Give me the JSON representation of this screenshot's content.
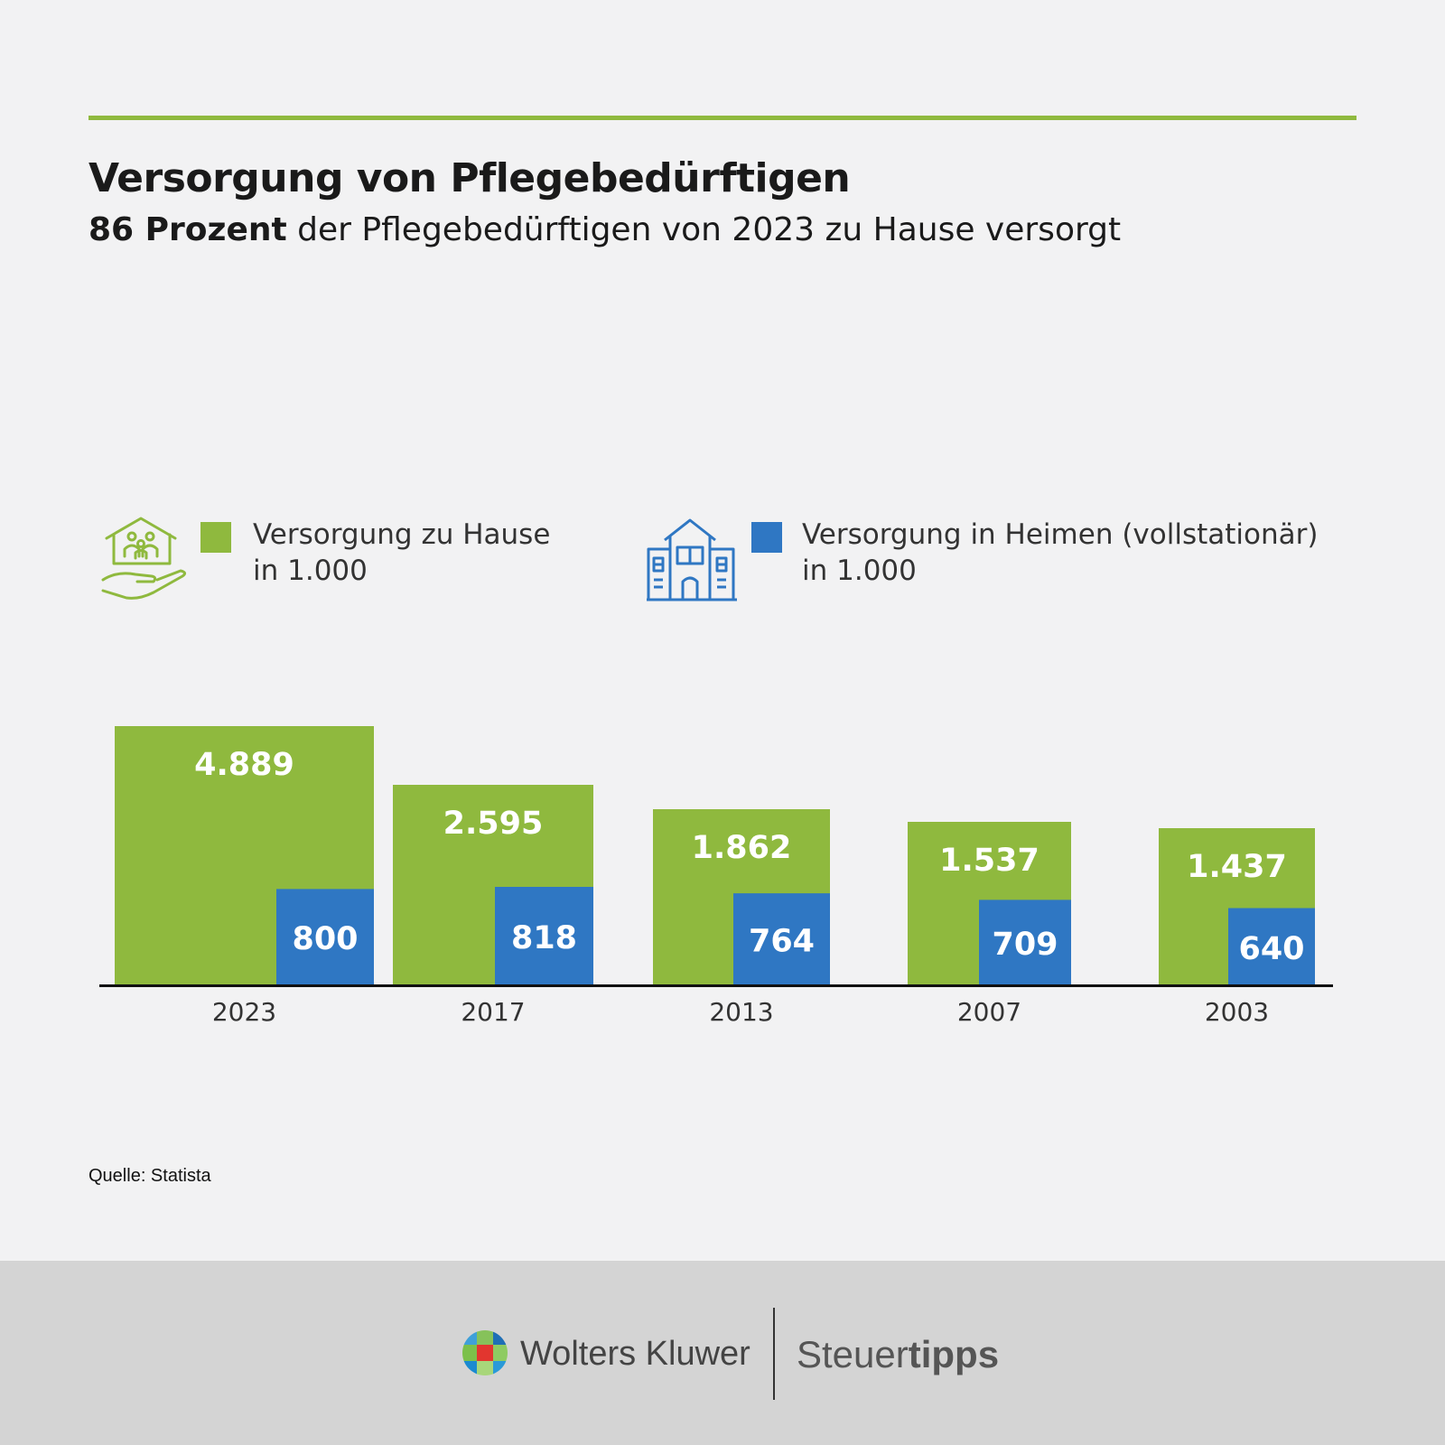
{
  "header": {
    "title": "Versorgung von Pflegebedürftigen",
    "subtitle_bold": "86 Prozent",
    "subtitle_rest": " der Pflegebedürftigen von 2023 zu Hause versorgt"
  },
  "legend": {
    "home": {
      "line1": "Versorgung zu Hause",
      "line2": "in 1.000",
      "icon": "home-care-icon"
    },
    "heim": {
      "line1": "Versorgung in Heimen (vollstationär)",
      "line2": "in 1.000",
      "icon": "care-home-building-icon"
    }
  },
  "colors": {
    "green": "#8fb93e",
    "blue": "#2f77c3",
    "rule": "#8fb93e"
  },
  "chart_data": {
    "type": "bar",
    "categories": [
      "2023",
      "2017",
      "2013",
      "2007",
      "2003"
    ],
    "series": [
      {
        "name": "Versorgung zu Hause",
        "values": [
          4889,
          2595,
          1862,
          1537,
          1437
        ],
        "labels": [
          "4.889",
          "2.595",
          "1.862",
          "1.537",
          "1.437"
        ]
      },
      {
        "name": "Versorgung in Heimen (vollstationär)",
        "values": [
          800,
          818,
          764,
          709,
          640
        ],
        "labels": [
          "800",
          "818",
          "764",
          "709",
          "640"
        ]
      }
    ],
    "unit": "in 1.000",
    "grid": false
  },
  "source": "Quelle: Statista",
  "footer": {
    "brand_left": "Wolters Kluwer",
    "brand_right_regular": "Steuer",
    "brand_right_bold": "tipps"
  }
}
